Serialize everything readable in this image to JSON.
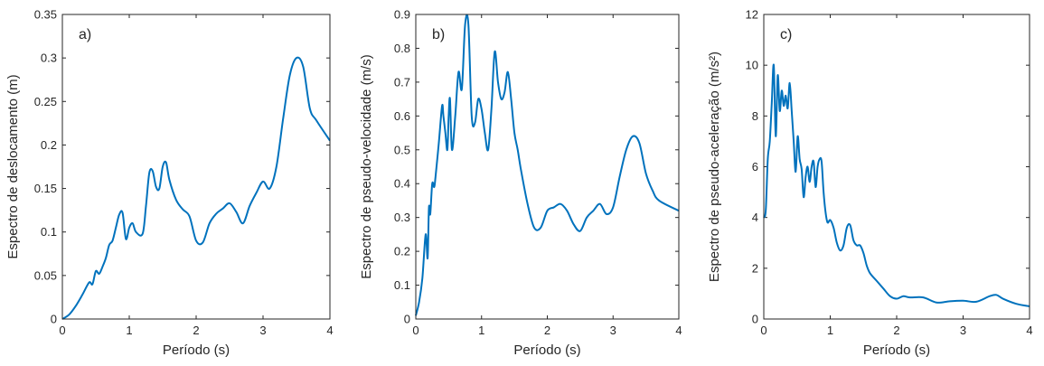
{
  "chart_data": [
    {
      "type": "line",
      "panel_label": "a)",
      "xlabel": "Período (s)",
      "ylabel": "Espectro de deslocamento (m)",
      "xlim": [
        0,
        4
      ],
      "ylim": [
        0,
        0.35
      ],
      "xticks": [
        "0",
        "1",
        "2",
        "3",
        "4"
      ],
      "yticks": [
        "0",
        "0.05",
        "0.1",
        "0.15",
        "0.2",
        "0.25",
        "0.3",
        "0.35"
      ],
      "color": "#0072BD",
      "series": [
        {
          "x": [
            0,
            0.1,
            0.2,
            0.3,
            0.4,
            0.45,
            0.5,
            0.55,
            0.6,
            0.65,
            0.7,
            0.75,
            0.8,
            0.85,
            0.9,
            0.95,
            1.0,
            1.05,
            1.1,
            1.2,
            1.25,
            1.3,
            1.35,
            1.4,
            1.45,
            1.5,
            1.55,
            1.6,
            1.7,
            1.8,
            1.9,
            2.0,
            2.1,
            2.2,
            2.3,
            2.4,
            2.5,
            2.6,
            2.7,
            2.8,
            2.9,
            3.0,
            3.1,
            3.2,
            3.3,
            3.4,
            3.5,
            3.6,
            3.7,
            3.8,
            4.0
          ],
          "y": [
            0,
            0.005,
            0.015,
            0.028,
            0.042,
            0.04,
            0.055,
            0.052,
            0.06,
            0.07,
            0.085,
            0.09,
            0.105,
            0.12,
            0.122,
            0.092,
            0.105,
            0.11,
            0.1,
            0.098,
            0.13,
            0.168,
            0.17,
            0.152,
            0.15,
            0.175,
            0.18,
            0.16,
            0.137,
            0.126,
            0.118,
            0.09,
            0.088,
            0.11,
            0.121,
            0.127,
            0.133,
            0.123,
            0.11,
            0.13,
            0.145,
            0.158,
            0.15,
            0.175,
            0.23,
            0.28,
            0.3,
            0.29,
            0.242,
            0.228,
            0.205
          ]
        }
      ]
    },
    {
      "type": "line",
      "panel_label": "b)",
      "xlabel": "Período (s)",
      "ylabel": "Espectro de pseudo-velocidade (m/s)",
      "xlim": [
        0,
        4
      ],
      "ylim": [
        0,
        0.9
      ],
      "xticks": [
        "0",
        "1",
        "2",
        "3",
        "4"
      ],
      "yticks": [
        "0",
        "0.1",
        "0.2",
        "0.3",
        "0.4",
        "0.5",
        "0.6",
        "0.7",
        "0.8",
        "0.9"
      ],
      "color": "#0072BD",
      "series": [
        {
          "x": [
            0,
            0.05,
            0.1,
            0.15,
            0.18,
            0.2,
            0.22,
            0.25,
            0.28,
            0.3,
            0.35,
            0.4,
            0.42,
            0.45,
            0.48,
            0.5,
            0.52,
            0.55,
            0.6,
            0.65,
            0.7,
            0.75,
            0.8,
            0.85,
            0.9,
            0.95,
            1.0,
            1.05,
            1.1,
            1.15,
            1.2,
            1.25,
            1.3,
            1.35,
            1.4,
            1.45,
            1.5,
            1.55,
            1.6,
            1.7,
            1.8,
            1.9,
            2.0,
            2.1,
            2.2,
            2.3,
            2.4,
            2.5,
            2.6,
            2.7,
            2.8,
            2.9,
            3.0,
            3.1,
            3.2,
            3.3,
            3.4,
            3.5,
            3.6,
            3.7,
            4.0
          ],
          "y": [
            0.01,
            0.05,
            0.12,
            0.25,
            0.18,
            0.33,
            0.31,
            0.4,
            0.39,
            0.42,
            0.52,
            0.63,
            0.6,
            0.55,
            0.5,
            0.6,
            0.65,
            0.5,
            0.6,
            0.73,
            0.68,
            0.87,
            0.87,
            0.6,
            0.58,
            0.65,
            0.62,
            0.55,
            0.5,
            0.62,
            0.79,
            0.7,
            0.65,
            0.67,
            0.73,
            0.65,
            0.55,
            0.5,
            0.44,
            0.34,
            0.27,
            0.27,
            0.32,
            0.33,
            0.34,
            0.32,
            0.28,
            0.26,
            0.3,
            0.32,
            0.34,
            0.31,
            0.33,
            0.42,
            0.5,
            0.54,
            0.52,
            0.43,
            0.38,
            0.35,
            0.32
          ]
        }
      ]
    },
    {
      "type": "line",
      "panel_label": "c)",
      "xlabel": "Período (s)",
      "ylabel": "Espectro de pseudo-aceleração (m/s²)",
      "xlim": [
        0,
        4
      ],
      "ylim": [
        0,
        12
      ],
      "xticks": [
        "0",
        "1",
        "2",
        "3",
        "4"
      ],
      "yticks": [
        "0",
        "2",
        "4",
        "6",
        "8",
        "10",
        "12"
      ],
      "color": "#0072BD",
      "series": [
        {
          "x": [
            0,
            0.03,
            0.06,
            0.09,
            0.12,
            0.15,
            0.18,
            0.21,
            0.24,
            0.27,
            0.3,
            0.33,
            0.36,
            0.39,
            0.42,
            0.45,
            0.48,
            0.51,
            0.54,
            0.57,
            0.6,
            0.63,
            0.66,
            0.69,
            0.72,
            0.75,
            0.78,
            0.81,
            0.84,
            0.87,
            0.9,
            0.93,
            0.96,
            1.0,
            1.05,
            1.1,
            1.15,
            1.2,
            1.25,
            1.3,
            1.35,
            1.4,
            1.45,
            1.5,
            1.55,
            1.6,
            1.7,
            1.8,
            1.9,
            2.0,
            2.1,
            2.2,
            2.4,
            2.6,
            2.8,
            3.0,
            3.2,
            3.4,
            3.5,
            3.6,
            3.8,
            4.0
          ],
          "y": [
            4,
            4.3,
            6.3,
            7,
            8.5,
            10,
            7.2,
            9.6,
            8.2,
            9,
            8.4,
            8.8,
            8.3,
            9.3,
            8.2,
            7,
            5.8,
            7.2,
            6.3,
            5.9,
            4.8,
            5.6,
            6,
            5.4,
            6,
            6.2,
            5.2,
            6,
            6.3,
            6.2,
            5,
            4.2,
            3.8,
            3.9,
            3.6,
            3,
            2.7,
            2.9,
            3.6,
            3.7,
            3.1,
            2.9,
            2.9,
            2.6,
            2.1,
            1.8,
            1.5,
            1.2,
            0.9,
            0.8,
            0.9,
            0.85,
            0.85,
            0.65,
            0.7,
            0.72,
            0.68,
            0.9,
            0.95,
            0.8,
            0.6,
            0.5
          ]
        }
      ]
    }
  ]
}
